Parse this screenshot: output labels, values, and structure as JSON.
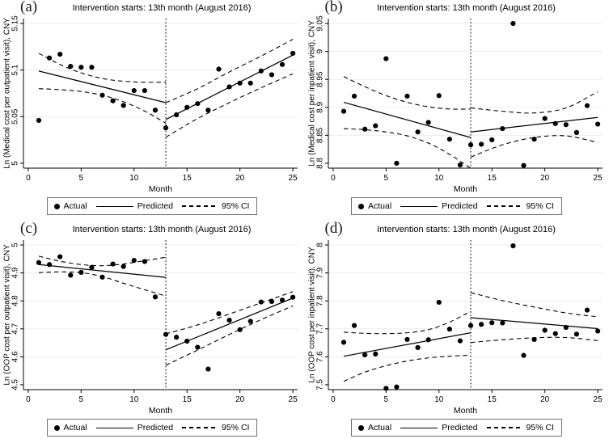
{
  "colors": {
    "line": "#000000",
    "grid": "#e7efee",
    "axis": "#000000",
    "text": "#000000",
    "background": "#ffffff"
  },
  "legend": {
    "actual_label": "Actual",
    "predicted_label": "Predicted",
    "ci_label": "95% CI"
  },
  "chart_data": [
    {
      "type": "scatter",
      "panel_label": "(a)",
      "title": "Intervention starts: 13th month (August 2016)",
      "xlabel": "Month",
      "ylabel": "Ln (Medical cost per outpatient visit), CNY",
      "xticks": [
        0,
        5,
        10,
        15,
        20,
        25
      ],
      "xtick_labels": [
        "0",
        "5",
        "10",
        "15",
        "20",
        "25"
      ],
      "yticks": [
        5,
        5.05,
        5.1,
        5.15
      ],
      "ytick_labels": [
        "5",
        "5.05",
        "5.1",
        "5.15"
      ],
      "xlim": [
        0,
        25
      ],
      "ylim": [
        5,
        5.15
      ],
      "grid": true,
      "legend_position": "bottom",
      "intervention_month": 13,
      "months": [
        1,
        2,
        3,
        4,
        5,
        6,
        7,
        8,
        9,
        10,
        11,
        12,
        13,
        14,
        15,
        16,
        17,
        18,
        19,
        20,
        21,
        22,
        23,
        24,
        25
      ],
      "actual": [
        5.046,
        5.113,
        5.117,
        5.104,
        5.103,
        5.103,
        5.073,
        5.067,
        5.062,
        5.078,
        5.078,
        5.057,
        5.038,
        5.052,
        5.06,
        5.064,
        5.057,
        5.101,
        5.082,
        5.086,
        5.086,
        5.099,
        5.095,
        5.106,
        5.118
      ],
      "predicted_pre": {
        "x": [
          1,
          13
        ],
        "y": [
          5.099,
          5.065
        ]
      },
      "predicted_post": {
        "x": [
          13,
          25
        ],
        "y": [
          5.047,
          5.116
        ]
      },
      "ci_pre_upper": {
        "x": [
          1,
          3,
          5,
          7,
          9,
          11,
          13
        ],
        "y": [
          5.118,
          5.106,
          5.097,
          5.091,
          5.088,
          5.087,
          5.087
        ]
      },
      "ci_pre_lower": {
        "x": [
          1,
          3,
          5,
          7,
          9,
          11,
          13
        ],
        "y": [
          5.08,
          5.079,
          5.077,
          5.073,
          5.066,
          5.056,
          5.043
        ]
      },
      "ci_post_upper": {
        "x": [
          13,
          16,
          19,
          22,
          25
        ],
        "y": [
          5.065,
          5.08,
          5.098,
          5.115,
          5.133
        ]
      },
      "ci_post_lower": {
        "x": [
          13,
          16,
          19,
          22,
          25
        ],
        "y": [
          5.028,
          5.048,
          5.065,
          5.081,
          5.096
        ]
      }
    },
    {
      "type": "scatter",
      "panel_label": "(b)",
      "title": "Intervention starts: 13th month (August 2016)",
      "xlabel": "Month",
      "ylabel": "Ln (Medical cost per inpatient visit), CNY",
      "xticks": [
        0,
        5,
        10,
        15,
        20,
        25
      ],
      "xtick_labels": [
        "0",
        "5",
        "10",
        "15",
        "20",
        "25"
      ],
      "yticks": [
        8.8,
        8.85,
        8.9,
        8.95,
        9,
        9.05
      ],
      "ytick_labels": [
        "8.8",
        "8.85",
        "8.9",
        "8.95",
        "9",
        "9.05"
      ],
      "xlim": [
        0,
        25
      ],
      "ylim": [
        8.8,
        9.05
      ],
      "grid": true,
      "legend_position": "bottom",
      "intervention_month": 13,
      "months": [
        1,
        2,
        3,
        4,
        5,
        6,
        7,
        8,
        9,
        10,
        11,
        12,
        13,
        14,
        15,
        16,
        17,
        18,
        19,
        20,
        21,
        22,
        23,
        24,
        25
      ],
      "actual": [
        8.893,
        8.92,
        8.861,
        8.867,
        8.987,
        8.8,
        8.92,
        8.856,
        8.873,
        8.921,
        8.843,
        8.797,
        8.833,
        8.834,
        8.842,
        8.862,
        9.05,
        8.796,
        8.843,
        8.88,
        8.871,
        8.869,
        8.855,
        8.903,
        8.87
      ],
      "predicted_pre": {
        "x": [
          1,
          13
        ],
        "y": [
          8.909,
          8.846
        ]
      },
      "predicted_post": {
        "x": [
          13,
          25
        ],
        "y": [
          8.856,
          8.882
        ]
      },
      "ci_pre_upper": {
        "x": [
          1,
          3,
          5,
          7,
          9,
          11,
          13
        ],
        "y": [
          8.955,
          8.937,
          8.921,
          8.909,
          8.901,
          8.897,
          8.897
        ]
      },
      "ci_pre_lower": {
        "x": [
          1,
          3,
          5,
          7,
          9,
          11,
          13
        ],
        "y": [
          8.862,
          8.86,
          8.856,
          8.849,
          8.836,
          8.816,
          8.791
        ]
      },
      "ci_post_upper": {
        "x": [
          13,
          16,
          19,
          22,
          25
        ],
        "y": [
          8.899,
          8.893,
          8.89,
          8.899,
          8.928
        ]
      },
      "ci_post_lower": {
        "x": [
          13,
          16,
          19,
          22,
          25
        ],
        "y": [
          8.811,
          8.833,
          8.846,
          8.849,
          8.837
        ]
      }
    },
    {
      "type": "scatter",
      "panel_label": "(c)",
      "title": "Intervention starts: 13th month (August 2016)",
      "xlabel": "Month",
      "ylabel": "Ln (OOP cost per outpatient visit), CNY",
      "xticks": [
        0,
        5,
        10,
        15,
        20,
        25
      ],
      "xtick_labels": [
        "0",
        "5",
        "10",
        "15",
        "20",
        "25"
      ],
      "yticks": [
        4.5,
        4.6,
        4.7,
        4.8,
        4.9,
        5
      ],
      "ytick_labels": [
        "4.5",
        "4.6",
        "4.7",
        "4.8",
        "4.9",
        "5"
      ],
      "xlim": [
        0,
        25
      ],
      "ylim": [
        4.5,
        5
      ],
      "grid": true,
      "legend_position": "bottom",
      "intervention_month": 13,
      "months": [
        1,
        2,
        3,
        4,
        5,
        6,
        7,
        8,
        9,
        10,
        11,
        12,
        13,
        14,
        15,
        16,
        17,
        18,
        19,
        20,
        21,
        22,
        23,
        24,
        25
      ],
      "actual": [
        4.937,
        4.93,
        4.958,
        4.892,
        4.902,
        4.92,
        4.885,
        4.932,
        4.923,
        4.945,
        4.941,
        4.814,
        4.68,
        4.67,
        4.656,
        4.634,
        4.556,
        4.754,
        4.731,
        4.697,
        4.727,
        4.796,
        4.798,
        4.803,
        4.813
      ],
      "predicted_pre": {
        "x": [
          1,
          13
        ],
        "y": [
          4.93,
          4.884
        ]
      },
      "predicted_post": {
        "x": [
          13,
          25
        ],
        "y": [
          4.625,
          4.81
        ]
      },
      "ci_pre_upper": {
        "x": [
          1,
          3,
          5,
          7,
          9,
          11,
          13
        ],
        "y": [
          4.96,
          4.942,
          4.93,
          4.926,
          4.932,
          4.944,
          4.956
        ]
      },
      "ci_pre_lower": {
        "x": [
          1,
          3,
          5,
          7,
          9,
          11,
          13
        ],
        "y": [
          4.901,
          4.904,
          4.901,
          4.887,
          4.863,
          4.84,
          4.817
        ]
      },
      "ci_post_upper": {
        "x": [
          13,
          16,
          19,
          22,
          25
        ],
        "y": [
          4.682,
          4.714,
          4.753,
          4.793,
          4.833
        ]
      },
      "ci_post_lower": {
        "x": [
          13,
          16,
          19,
          22,
          25
        ],
        "y": [
          4.57,
          4.624,
          4.68,
          4.733,
          4.782
        ]
      }
    },
    {
      "type": "scatter",
      "panel_label": "(d)",
      "title": "Intervention starts: 13th month (August 2016)",
      "xlabel": "Month",
      "ylabel": "Ln (OOP cost per inpatient visit), CNY",
      "xticks": [
        0,
        5,
        10,
        15,
        20,
        25
      ],
      "xtick_labels": [
        "0",
        "5",
        "10",
        "15",
        "20",
        "25"
      ],
      "yticks": [
        7.5,
        7.6,
        7.7,
        7.8,
        7.9,
        8
      ],
      "ytick_labels": [
        "7.5",
        "7.6",
        "7.7",
        "7.8",
        "7.9",
        "8"
      ],
      "xlim": [
        0,
        25
      ],
      "ylim": [
        7.5,
        8
      ],
      "grid": true,
      "legend_position": "bottom",
      "intervention_month": 13,
      "months": [
        1,
        2,
        3,
        4,
        5,
        6,
        7,
        8,
        9,
        10,
        11,
        12,
        13,
        14,
        15,
        16,
        17,
        18,
        19,
        20,
        21,
        22,
        23,
        24,
        25
      ],
      "actual": [
        7.652,
        7.712,
        7.607,
        7.61,
        7.487,
        7.492,
        7.662,
        7.633,
        7.661,
        7.795,
        7.699,
        7.657,
        7.712,
        7.716,
        7.722,
        7.721,
        7.997,
        7.605,
        7.662,
        7.695,
        7.683,
        7.705,
        7.681,
        7.767,
        7.692
      ],
      "predicted_pre": {
        "x": [
          1,
          13
        ],
        "y": [
          7.602,
          7.686
        ]
      },
      "predicted_post": {
        "x": [
          13,
          25
        ],
        "y": [
          7.74,
          7.701
        ]
      },
      "ci_pre_upper": {
        "x": [
          1,
          3,
          5,
          7,
          9,
          11,
          13
        ],
        "y": [
          7.688,
          7.684,
          7.683,
          7.686,
          7.697,
          7.724,
          7.763
        ]
      },
      "ci_pre_lower": {
        "x": [
          1,
          3,
          5,
          7,
          9,
          11,
          13
        ],
        "y": [
          7.512,
          7.545,
          7.568,
          7.585,
          7.596,
          7.602,
          7.606
        ]
      },
      "ci_post_upper": {
        "x": [
          13,
          16,
          19,
          22,
          25
        ],
        "y": [
          7.83,
          7.801,
          7.778,
          7.757,
          7.743
        ]
      },
      "ci_post_lower": {
        "x": [
          13,
          16,
          19,
          22,
          25
        ],
        "y": [
          7.651,
          7.661,
          7.668,
          7.669,
          7.658
        ]
      }
    }
  ]
}
